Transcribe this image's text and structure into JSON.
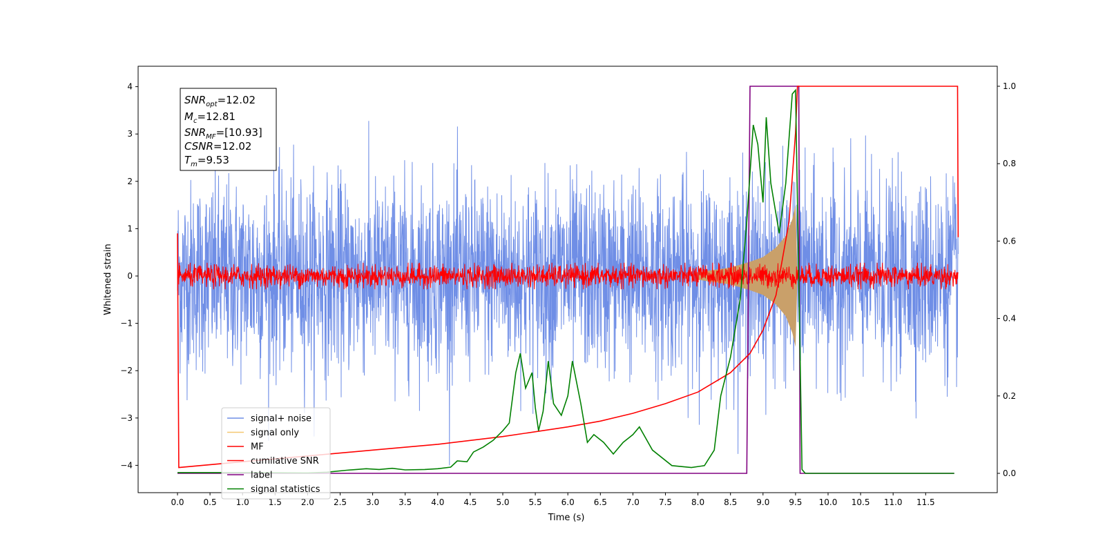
{
  "chart_data": {
    "type": "line",
    "xlabel": "Time (s)",
    "ylabel": "Whitened strain",
    "xlim": [
      0,
      12
    ],
    "ylim_left": [
      -4.5,
      4.4
    ],
    "ylim_right": [
      -0.05,
      1.05
    ],
    "x_ticks": [
      "0.0",
      "0.5",
      "1.0",
      "1.5",
      "2.0",
      "2.5",
      "3.0",
      "3.5",
      "4.0",
      "4.5",
      "5.0",
      "5.5",
      "6.0",
      "6.5",
      "7.0",
      "7.5",
      "8.0",
      "8.5",
      "9.0",
      "9.5",
      "10.0",
      "10.5",
      "11.0",
      "11.5"
    ],
    "y_left_ticks": [
      "4",
      "3",
      "2",
      "1",
      "0",
      "−1",
      "−2",
      "−3",
      "−4"
    ],
    "y_right_ticks": [
      "1.0",
      "0.8",
      "0.6",
      "0.4",
      "0.2",
      "0.0"
    ],
    "info_box": {
      "snr_opt": {
        "base": "SNR",
        "sub": "opt",
        "value": "=12.02"
      },
      "mc": {
        "base": "M",
        "sub": "c",
        "value": "=12.81"
      },
      "snr_mf": {
        "base": "SNR",
        "sub": "MF",
        "value": "=[10.93]"
      },
      "csnr": {
        "base": "CSNR",
        "value": "=12.02"
      },
      "tm": {
        "base": "T",
        "sub": "m",
        "value": "=9.53"
      }
    },
    "legend": {
      "placement": "lower-left",
      "entries": [
        {
          "label": "signal+ noise",
          "color": "#6f8ee6"
        },
        {
          "label": "signal only",
          "color": "#f5c870"
        },
        {
          "label": "MF",
          "color": "#ff0000"
        },
        {
          "label": "cumilative SNR",
          "color": "#ff0000"
        },
        {
          "label": "label",
          "color": "#800080"
        },
        {
          "label": "signal statistics",
          "color": "#008000"
        }
      ]
    },
    "series": [
      {
        "name": "signal+ noise",
        "axis": "left",
        "kind": "noise",
        "color": "#6f8ee6",
        "x_range": [
          0,
          12
        ],
        "amplitude_typical": 1.0,
        "amplitude_max": 4.0
      },
      {
        "name": "signal only",
        "axis": "left",
        "kind": "chirp-envelope",
        "color": "#c9a06a",
        "points": [
          [
            8.0,
            0.08
          ],
          [
            8.5,
            0.18
          ],
          [
            8.8,
            0.3
          ],
          [
            9.0,
            0.4
          ],
          [
            9.2,
            0.6
          ],
          [
            9.35,
            0.85
          ],
          [
            9.45,
            1.2
          ],
          [
            9.5,
            1.5
          ],
          [
            9.53,
            0.0
          ]
        ]
      },
      {
        "name": "MF",
        "axis": "left",
        "kind": "noise",
        "color": "#ff0000",
        "x_range": [
          0,
          12
        ],
        "amplitude_typical": 0.12,
        "amplitude_max": 0.28
      },
      {
        "name": "cumilative SNR",
        "axis": "right",
        "color": "#ff0000",
        "points": [
          [
            0.0,
            0.62
          ],
          [
            0.02,
            0.015
          ],
          [
            1.0,
            0.03
          ],
          [
            2.0,
            0.045
          ],
          [
            3.0,
            0.06
          ],
          [
            4.0,
            0.075
          ],
          [
            5.0,
            0.095
          ],
          [
            6.0,
            0.12
          ],
          [
            6.5,
            0.135
          ],
          [
            7.0,
            0.155
          ],
          [
            7.5,
            0.18
          ],
          [
            8.0,
            0.21
          ],
          [
            8.5,
            0.26
          ],
          [
            8.8,
            0.31
          ],
          [
            9.0,
            0.37
          ],
          [
            9.2,
            0.46
          ],
          [
            9.4,
            0.65
          ],
          [
            9.5,
            0.88
          ],
          [
            9.53,
            1.0
          ],
          [
            10.0,
            1.0
          ],
          [
            11.0,
            1.0
          ],
          [
            11.99,
            1.0
          ],
          [
            12.0,
            0.61
          ]
        ]
      },
      {
        "name": "label",
        "axis": "right",
        "color": "#800080",
        "points": [
          [
            0.0,
            0.0
          ],
          [
            8.75,
            0.0
          ],
          [
            8.8,
            1.0
          ],
          [
            9.55,
            1.0
          ],
          [
            9.57,
            0.0
          ],
          [
            11.94,
            0.0
          ]
        ]
      },
      {
        "name": "signal statistics",
        "axis": "right",
        "color": "#008000",
        "points": [
          [
            0.0,
            0.002
          ],
          [
            1.0,
            0.002
          ],
          [
            2.0,
            0.001
          ],
          [
            2.3,
            0.003
          ],
          [
            2.6,
            0.008
          ],
          [
            2.9,
            0.012
          ],
          [
            3.1,
            0.01
          ],
          [
            3.3,
            0.013
          ],
          [
            3.5,
            0.009
          ],
          [
            3.8,
            0.01
          ],
          [
            4.0,
            0.012
          ],
          [
            4.2,
            0.016
          ],
          [
            4.3,
            0.032
          ],
          [
            4.45,
            0.03
          ],
          [
            4.55,
            0.055
          ],
          [
            4.7,
            0.068
          ],
          [
            4.85,
            0.085
          ],
          [
            5.0,
            0.11
          ],
          [
            5.1,
            0.13
          ],
          [
            5.2,
            0.26
          ],
          [
            5.27,
            0.31
          ],
          [
            5.35,
            0.22
          ],
          [
            5.45,
            0.26
          ],
          [
            5.5,
            0.17
          ],
          [
            5.55,
            0.11
          ],
          [
            5.62,
            0.16
          ],
          [
            5.7,
            0.29
          ],
          [
            5.78,
            0.18
          ],
          [
            5.9,
            0.15
          ],
          [
            6.0,
            0.2
          ],
          [
            6.07,
            0.29
          ],
          [
            6.2,
            0.18
          ],
          [
            6.3,
            0.08
          ],
          [
            6.4,
            0.1
          ],
          [
            6.55,
            0.08
          ],
          [
            6.7,
            0.05
          ],
          [
            6.85,
            0.08
          ],
          [
            7.0,
            0.1
          ],
          [
            7.1,
            0.12
          ],
          [
            7.3,
            0.06
          ],
          [
            7.6,
            0.02
          ],
          [
            7.9,
            0.015
          ],
          [
            8.1,
            0.02
          ],
          [
            8.25,
            0.06
          ],
          [
            8.35,
            0.2
          ],
          [
            8.5,
            0.3
          ],
          [
            8.65,
            0.45
          ],
          [
            8.75,
            0.65
          ],
          [
            8.85,
            0.9
          ],
          [
            8.92,
            0.85
          ],
          [
            9.0,
            0.7
          ],
          [
            9.05,
            0.92
          ],
          [
            9.12,
            0.75
          ],
          [
            9.25,
            0.62
          ],
          [
            9.35,
            0.75
          ],
          [
            9.45,
            0.98
          ],
          [
            9.5,
            0.99
          ],
          [
            9.55,
            0.5
          ],
          [
            9.6,
            0.01
          ],
          [
            9.65,
            0.0
          ],
          [
            10.0,
            0.0
          ],
          [
            11.0,
            0.0
          ],
          [
            11.94,
            0.0
          ]
        ]
      }
    ]
  }
}
